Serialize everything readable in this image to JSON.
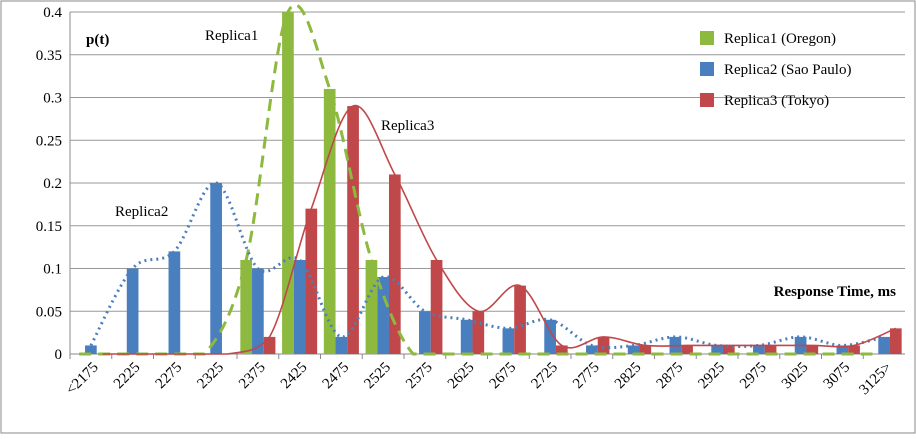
{
  "chart_data": {
    "type": "bar",
    "y_label": "p(t)",
    "x_label": "Response Time, ms",
    "annotations": [
      "Replica1",
      "Replica2",
      "Replica3"
    ],
    "categories": [
      "<2175",
      "2225",
      "2275",
      "2325",
      "2375",
      "2425",
      "2475",
      "2525",
      "2575",
      "2625",
      "2675",
      "2725",
      "2775",
      "2825",
      "2875",
      "2925",
      "2975",
      "3025",
      "3075",
      "3125>"
    ],
    "series": [
      {
        "name": "Replica1 (Oregon)",
        "color": "#8db93f",
        "values": [
          0,
          0,
          0,
          0,
          0.11,
          0.4,
          0.31,
          0.11,
          0,
          0,
          0,
          0,
          0,
          0,
          0,
          0,
          0,
          0,
          0,
          0
        ]
      },
      {
        "name": "Replica2 (Sao Paulo)",
        "color": "#4a7fbf",
        "values": [
          0.01,
          0.1,
          0.12,
          0.2,
          0.1,
          0.11,
          0.02,
          0.09,
          0.05,
          0.04,
          0.03,
          0.04,
          0.01,
          0.01,
          0.02,
          0.01,
          0.01,
          0.02,
          0.01,
          0.02
        ]
      },
      {
        "name": "Replica3 (Tokyo)",
        "color": "#c0474a",
        "values": [
          0,
          0,
          0,
          0,
          0.02,
          0.17,
          0.29,
          0.21,
          0.11,
          0.05,
          0.08,
          0.01,
          0.02,
          0.01,
          0.01,
          0.01,
          0.01,
          0.01,
          0.01,
          0.03
        ]
      }
    ],
    "ylim": [
      0,
      0.4
    ],
    "yticks": [
      0,
      0.05,
      0.1,
      0.15,
      0.2,
      0.25,
      0.3,
      0.35,
      0.4
    ],
    "grid": true,
    "legend": "upper-right"
  }
}
